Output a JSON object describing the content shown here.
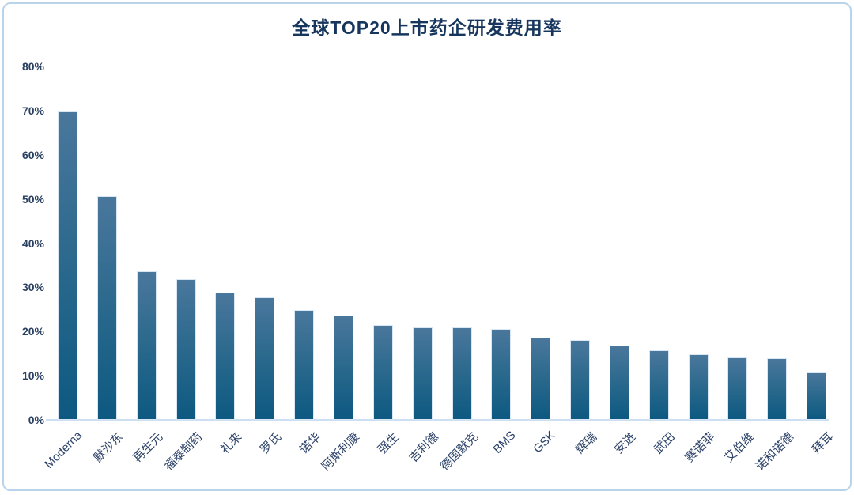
{
  "page": {
    "background_color": "#ffffff",
    "frame_border_color": "#b9d3ea"
  },
  "chart_data": {
    "type": "bar",
    "title": "全球TOP20上市药企研发费用率",
    "categories": [
      "Moderna",
      "默沙东",
      "再生元",
      "福泰制药",
      "礼来",
      "罗氏",
      "诺华",
      "阿斯利康",
      "强生",
      "吉利德",
      "德国默克",
      "BMS",
      "GSK",
      "辉瑞",
      "安进",
      "武田",
      "赛诺菲",
      "艾伯维",
      "诺和诺德",
      "拜耳"
    ],
    "values": [
      69.8,
      50.6,
      33.6,
      31.8,
      28.8,
      27.7,
      24.9,
      23.6,
      21.5,
      21.0,
      20.9,
      20.5,
      18.7,
      18.0,
      16.8,
      15.8,
      14.9,
      14.2,
      13.9,
      10.8
    ],
    "unit": "%",
    "xlabel": "",
    "ylabel": "",
    "ylim": [
      0,
      80
    ],
    "yticks": [
      0,
      10,
      20,
      30,
      40,
      50,
      60,
      70,
      80
    ],
    "ytick_labels": [
      "0%",
      "10%",
      "20%",
      "30%",
      "40%",
      "50%",
      "60%",
      "70%",
      "80%"
    ],
    "grid": false,
    "legend": "none",
    "x_label_rotation_deg": -45,
    "colors": {
      "bar_gradient_top": "#4a779c",
      "bar_gradient_bottom": "#0d5981",
      "bar_border": "#d9e7f4",
      "title_text": "#17365d",
      "tick_text": "#2a4163",
      "axis_line": "#cddff2"
    }
  }
}
